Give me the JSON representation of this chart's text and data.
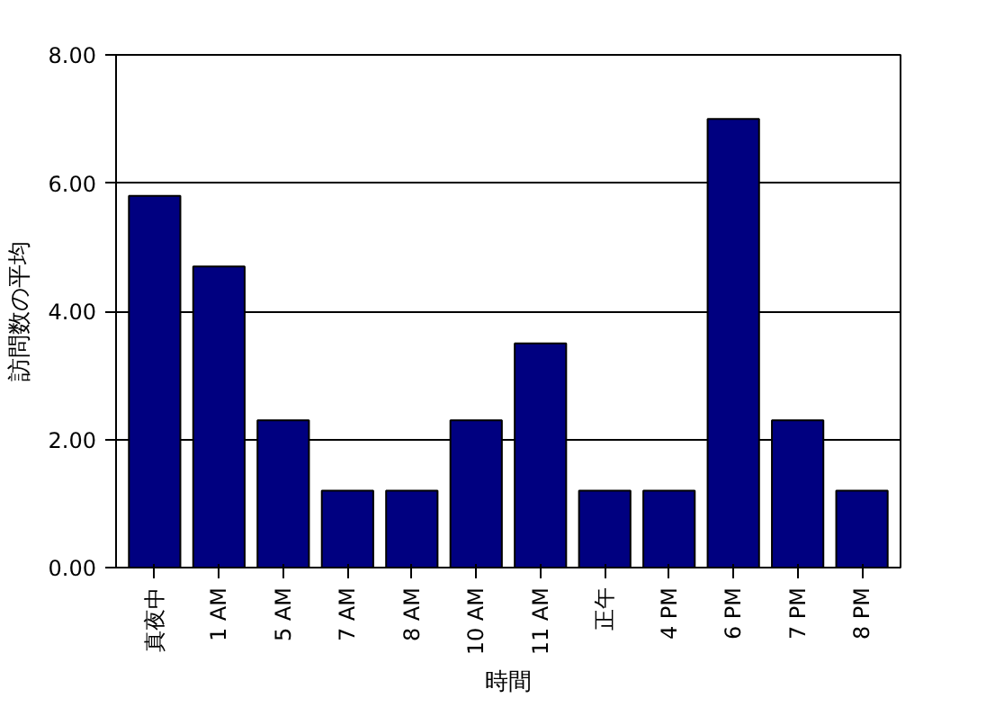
{
  "chart_data": {
    "type": "bar",
    "xlabel": "時間",
    "ylabel": "訪問数の平均",
    "categories": [
      "真夜中",
      "1 AM",
      "5 AM",
      "7 AM",
      "8 AM",
      "10 AM",
      "11 AM",
      "正午",
      "4 PM",
      "6 PM",
      "7 PM",
      "8 PM"
    ],
    "values": [
      5.8,
      4.7,
      2.3,
      1.2,
      1.2,
      2.3,
      3.5,
      1.2,
      1.2,
      7.0,
      2.3,
      1.2
    ],
    "color": "#000080",
    "ylim": [
      0,
      8
    ],
    "yticks": [
      {
        "value": 0,
        "label": "0.00"
      },
      {
        "value": 2,
        "label": "2.00"
      },
      {
        "value": 4,
        "label": "4.00"
      },
      {
        "value": 6,
        "label": "6.00"
      },
      {
        "value": 8,
        "label": "8.00"
      }
    ],
    "grid": "y"
  }
}
